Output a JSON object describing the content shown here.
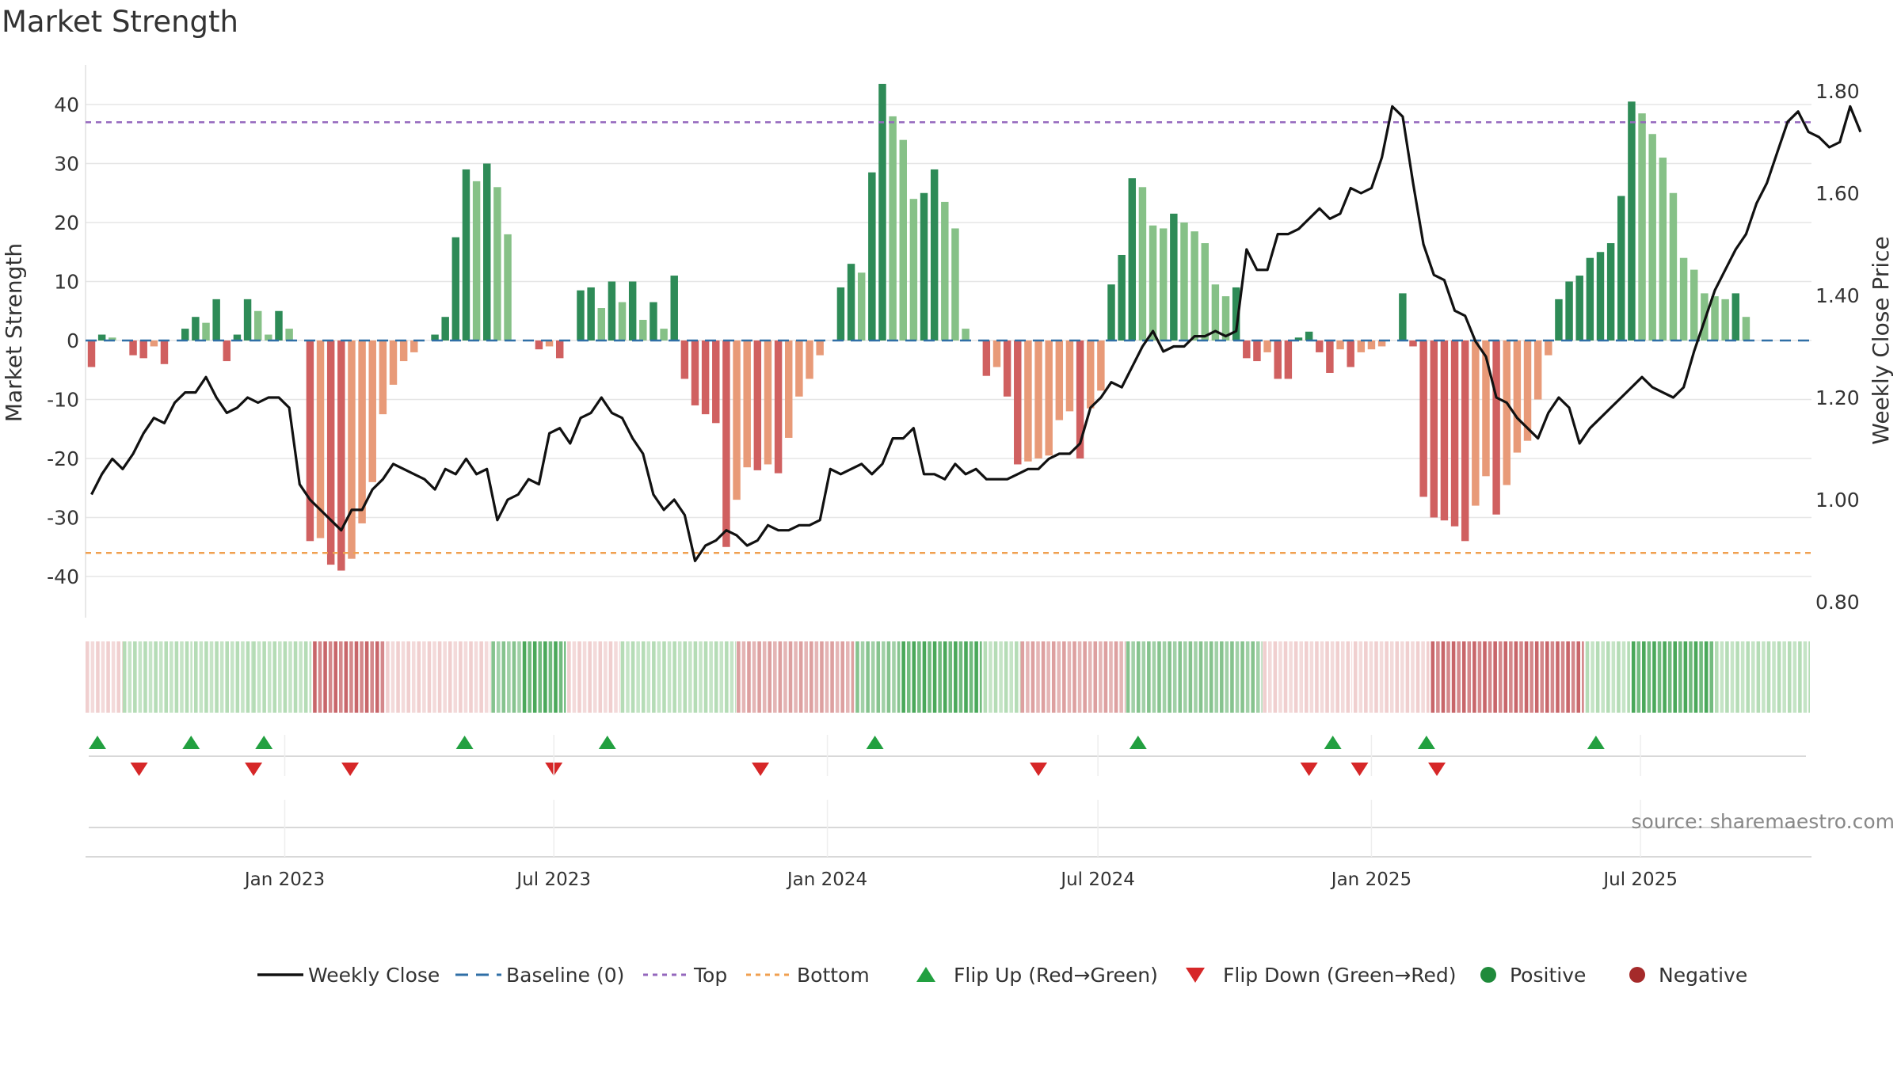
{
  "chart_data": {
    "type": "bar+line",
    "title": "Market Strength",
    "ylabel": "Market Strength",
    "y2label": "Weekly Close Price",
    "ylim": [
      -47,
      48
    ],
    "y2lim": [
      0.78,
      1.82
    ],
    "yticks": [
      40,
      30,
      20,
      10,
      0,
      -10,
      -20,
      -30,
      -40
    ],
    "y2ticks": [
      "1.80",
      "1.60",
      "1.40",
      "1.20",
      "1.00",
      "0.80"
    ],
    "x_range": [
      "2022-08-20",
      "2025-10-24"
    ],
    "x_ticks": [
      {
        "date": "2023-01-01",
        "label": "Jan 2023"
      },
      {
        "date": "2023-07-01",
        "label": "Jul 2023"
      },
      {
        "date": "2024-01-01",
        "label": "Jan 2024"
      },
      {
        "date": "2024-07-01",
        "label": "Jul 2024"
      },
      {
        "date": "2025-01-01",
        "label": "Jan 2025"
      },
      {
        "date": "2025-07-01",
        "label": "Jul 2025"
      }
    ],
    "start_date": "2022-08-24",
    "interval_days": 7,
    "threshold_top": 37,
    "threshold_bottom": -36,
    "strength": [
      -4.5,
      1,
      0.5,
      0,
      -2.5,
      -3,
      -1,
      -4,
      0,
      2,
      4,
      3,
      7,
      -3.5,
      1,
      7,
      5,
      1,
      5,
      2,
      0,
      -34,
      -33.5,
      -38,
      -39,
      -37,
      -31,
      -24,
      -12.5,
      -7.5,
      -3.5,
      -2,
      0,
      1,
      4,
      17.5,
      29,
      27,
      30,
      26,
      18,
      0,
      0,
      -1.5,
      -1,
      -3,
      0,
      8.5,
      9,
      5.5,
      10,
      6.5,
      10,
      3.5,
      6.5,
      2,
      11,
      -6.5,
      -11,
      -12.5,
      -14,
      -35,
      -27,
      -21.5,
      -22,
      -21,
      -22.5,
      -16.5,
      -9.5,
      -6.5,
      -2.5,
      0,
      9,
      13,
      11.5,
      28.5,
      43.5,
      38,
      34,
      24,
      25,
      29,
      23.5,
      19,
      2,
      0,
      -6,
      -4.5,
      -9.5,
      -21,
      -20.5,
      -20,
      -19.5,
      -13.5,
      -12,
      -20,
      -11.5,
      -8.5,
      9.5,
      14.5,
      27.5,
      26,
      19.5,
      19,
      21.5,
      20,
      18.5,
      16.5,
      9.5,
      7.5,
      9,
      -3,
      -3.5,
      -2,
      -6.5,
      -6.5,
      0.5,
      1.5,
      -2,
      -5.5,
      -1.5,
      -4.5,
      -2,
      -1.5,
      -1,
      0,
      8,
      -1,
      -26.5,
      -30,
      -30.5,
      -31.5,
      -34,
      -28,
      -23,
      -29.5,
      -24.5,
      -19,
      -17,
      -10,
      -2.5,
      7,
      10,
      11,
      14,
      15,
      16.5,
      24.5,
      40.5,
      38.5,
      35,
      31,
      25,
      14,
      12,
      8,
      7.5,
      7,
      8,
      4
    ],
    "close": [
      1.01,
      1.05,
      1.08,
      1.06,
      1.09,
      1.13,
      1.16,
      1.15,
      1.19,
      1.21,
      1.21,
      1.24,
      1.2,
      1.17,
      1.18,
      1.2,
      1.19,
      1.2,
      1.2,
      1.18,
      1.03,
      1.0,
      0.98,
      0.96,
      0.94,
      0.98,
      0.98,
      1.02,
      1.04,
      1.07,
      1.06,
      1.05,
      1.04,
      1.02,
      1.06,
      1.05,
      1.08,
      1.05,
      1.06,
      0.96,
      1.0,
      1.01,
      1.04,
      1.03,
      1.13,
      1.14,
      1.11,
      1.16,
      1.17,
      1.2,
      1.17,
      1.16,
      1.12,
      1.09,
      1.01,
      0.98,
      1.0,
      0.97,
      0.88,
      0.91,
      0.92,
      0.94,
      0.93,
      0.91,
      0.92,
      0.95,
      0.94,
      0.94,
      0.95,
      0.95,
      0.96,
      1.06,
      1.05,
      1.06,
      1.07,
      1.05,
      1.07,
      1.12,
      1.12,
      1.14,
      1.05,
      1.05,
      1.04,
      1.07,
      1.05,
      1.06,
      1.04,
      1.04,
      1.04,
      1.05,
      1.06,
      1.06,
      1.08,
      1.09,
      1.09,
      1.11,
      1.18,
      1.2,
      1.23,
      1.22,
      1.26,
      1.3,
      1.33,
      1.29,
      1.3,
      1.3,
      1.32,
      1.32,
      1.33,
      1.32,
      1.33,
      1.49,
      1.45,
      1.45,
      1.52,
      1.52,
      1.53,
      1.55,
      1.57,
      1.55,
      1.56,
      1.61,
      1.6,
      1.61,
      1.67,
      1.77,
      1.75,
      1.62,
      1.5,
      1.44,
      1.43,
      1.37,
      1.36,
      1.31,
      1.28,
      1.2,
      1.19,
      1.16,
      1.14,
      1.12,
      1.17,
      1.2,
      1.18,
      1.11,
      1.14,
      1.16,
      1.18,
      1.2,
      1.22,
      1.24,
      1.22,
      1.21,
      1.2,
      1.22,
      1.29,
      1.35,
      1.41,
      1.45,
      1.49,
      1.52,
      1.58,
      1.62,
      1.68,
      1.74,
      1.76,
      1.72,
      1.71,
      1.69,
      1.7,
      1.77,
      1.72
    ],
    "regime_strip": [
      {
        "start": "2022-08-20",
        "end": "2022-09-14",
        "state": "negative",
        "intensity": "weak"
      },
      {
        "start": "2022-09-14",
        "end": "2022-11-01",
        "state": "positive",
        "intensity": "weak"
      },
      {
        "start": "2022-11-01",
        "end": "2022-12-10",
        "state": "positive",
        "intensity": "weak"
      },
      {
        "start": "2022-12-10",
        "end": "2023-01-20",
        "state": "positive",
        "intensity": "weak"
      },
      {
        "start": "2023-01-20",
        "end": "2023-03-10",
        "state": "negative",
        "intensity": "strong"
      },
      {
        "start": "2023-03-10",
        "end": "2023-05-20",
        "state": "negative",
        "intensity": "weak"
      },
      {
        "start": "2023-05-20",
        "end": "2023-06-10",
        "state": "positive",
        "intensity": "medium"
      },
      {
        "start": "2023-06-10",
        "end": "2023-07-10",
        "state": "positive",
        "intensity": "strong"
      },
      {
        "start": "2023-07-10",
        "end": "2023-08-15",
        "state": "negative",
        "intensity": "weak"
      },
      {
        "start": "2023-08-15",
        "end": "2023-11-01",
        "state": "positive",
        "intensity": "weak"
      },
      {
        "start": "2023-11-01",
        "end": "2024-01-20",
        "state": "negative",
        "intensity": "medium"
      },
      {
        "start": "2024-01-20",
        "end": "2024-02-20",
        "state": "positive",
        "intensity": "medium"
      },
      {
        "start": "2024-02-20",
        "end": "2024-04-15",
        "state": "positive",
        "intensity": "strong"
      },
      {
        "start": "2024-04-15",
        "end": "2024-05-10",
        "state": "positive",
        "intensity": "weak"
      },
      {
        "start": "2024-05-10",
        "end": "2024-07-20",
        "state": "negative",
        "intensity": "medium"
      },
      {
        "start": "2024-07-20",
        "end": "2024-10-20",
        "state": "positive",
        "intensity": "medium"
      },
      {
        "start": "2024-10-20",
        "end": "2024-12-20",
        "state": "negative",
        "intensity": "weak"
      },
      {
        "start": "2024-12-20",
        "end": "2025-02-10",
        "state": "negative",
        "intensity": "weak"
      },
      {
        "start": "2025-02-10",
        "end": "2025-05-25",
        "state": "negative",
        "intensity": "strong"
      },
      {
        "start": "2025-05-25",
        "end": "2025-06-25",
        "state": "positive",
        "intensity": "weak"
      },
      {
        "start": "2025-06-25",
        "end": "2025-08-20",
        "state": "positive",
        "intensity": "strong"
      },
      {
        "start": "2025-08-20",
        "end": "2025-10-24",
        "state": "positive",
        "intensity": "weak"
      }
    ],
    "flip_up_dates": [
      "2022-08-28",
      "2022-10-30",
      "2022-12-18",
      "2023-05-02",
      "2023-08-06",
      "2024-02-02",
      "2024-07-28",
      "2024-12-06",
      "2025-02-07",
      "2025-06-01"
    ],
    "flip_down_dates": [
      "2022-09-25",
      "2022-12-11",
      "2023-02-14",
      "2023-07-01",
      "2023-11-17",
      "2024-05-22",
      "2024-11-20",
      "2024-12-24",
      "2025-02-14"
    ],
    "colors": {
      "pos_dark": "#2e8b57",
      "pos_light": "#86c187",
      "neg_dark": "#d06060",
      "neg_light": "#e89a78",
      "close_line": "#111111",
      "baseline": "#2f6fa6",
      "top": "#9467bd",
      "bottom": "#f0a050",
      "flip_up": "#22a040",
      "flip_down": "#d62728",
      "positive": "#1f8a3b",
      "negative": "#a52a2a",
      "strip_pos": "#b5dcb6",
      "strip_neg": "#f0cfcf",
      "strip_pos_strong": "#4aa85a",
      "strip_neg_strong": "#c8666a",
      "grid": "#e6e6e6"
    },
    "legend": [
      "Weekly Close",
      "Baseline (0)",
      "Top",
      "Bottom",
      "Flip Up (Red→Green)",
      "Flip Down (Green→Red)",
      "Positive",
      "Negative"
    ],
    "source_note": "source: sharemaestro.com"
  }
}
